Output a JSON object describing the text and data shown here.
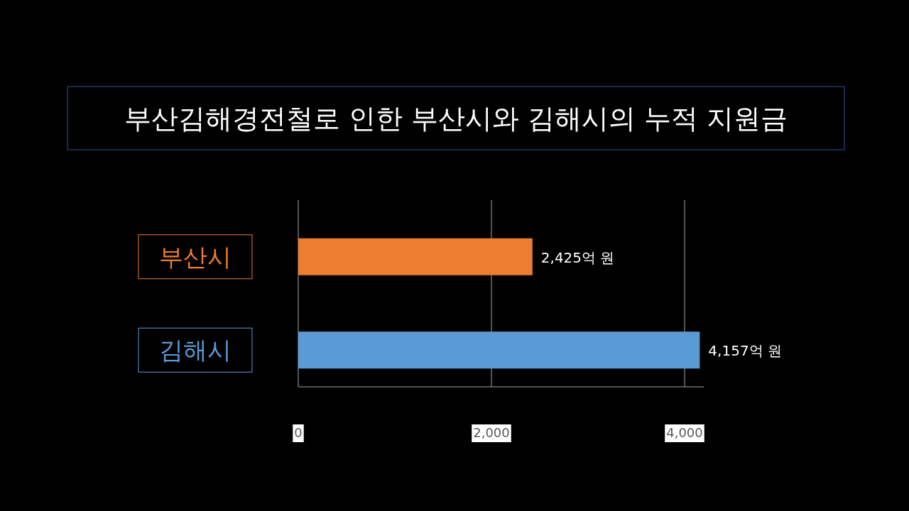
{
  "chart_data": {
    "type": "bar",
    "orientation": "horizontal",
    "title": "부산김해경전철로 인한 부산시와 김해시의 누적 지원금",
    "categories": [
      "부산시",
      "김해시"
    ],
    "series": [
      {
        "colors": [
          "#ed7d31",
          "#5b9bd5"
        ],
        "values": [
          2425,
          4157
        ],
        "value_labels": [
          "2,425억 원",
          "4,157억 원"
        ]
      }
    ],
    "xlim": [
      0,
      4200
    ],
    "xticks": [
      0,
      {
        "value": 2000,
        "label": "2,000"
      },
      {
        "value": 4000,
        "label": "4,000"
      }
    ],
    "grid": "x"
  }
}
